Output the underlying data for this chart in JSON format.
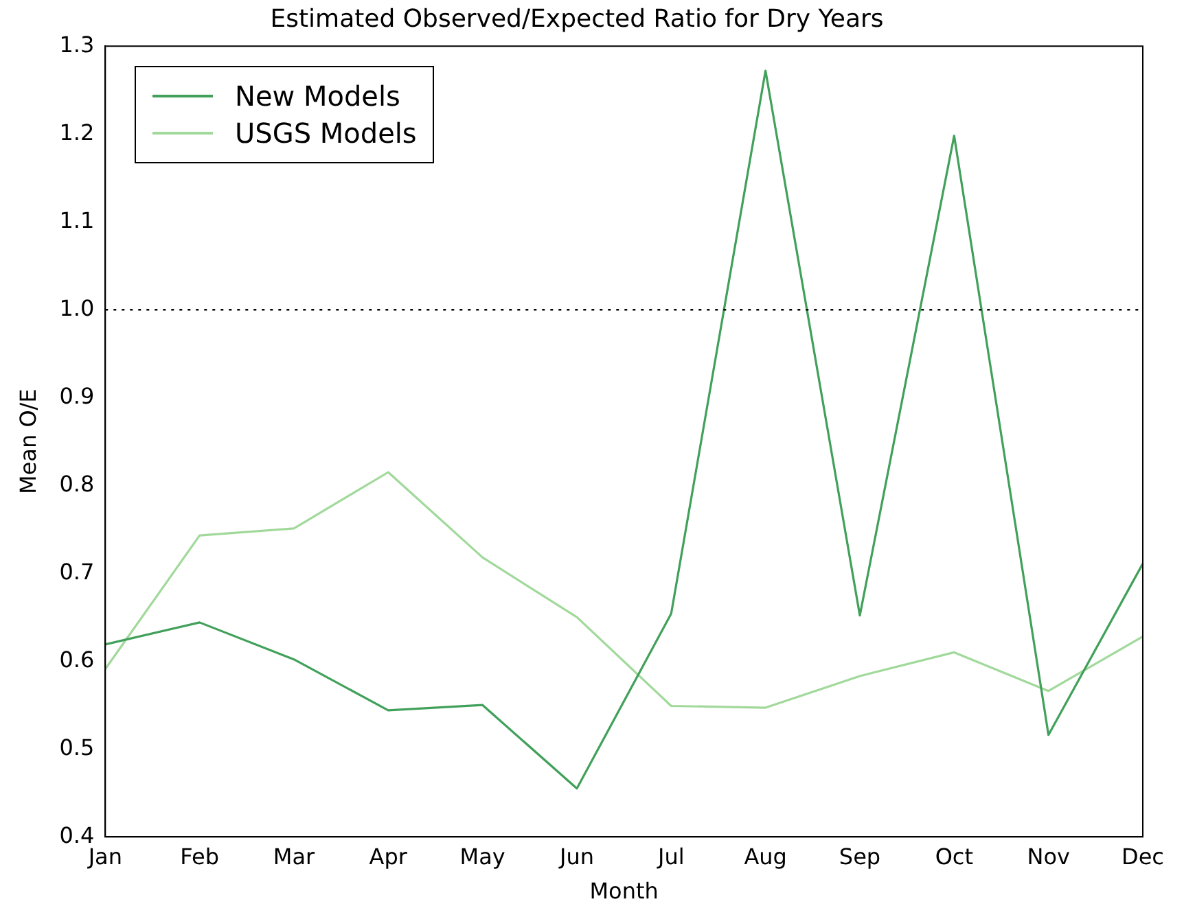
{
  "chart_data": {
    "type": "line",
    "title": "Estimated Observed/Expected Ratio for Dry Years",
    "xlabel": "Month",
    "ylabel": "Mean O/E",
    "categories": [
      "Jan",
      "Feb",
      "Mar",
      "Apr",
      "May",
      "Jun",
      "Jul",
      "Aug",
      "Sep",
      "Oct",
      "Nov",
      "Dec"
    ],
    "series": [
      {
        "name": "New Models",
        "color": "#41a05a",
        "values": [
          0.619,
          0.644,
          0.602,
          0.544,
          0.55,
          0.455,
          0.654,
          1.272,
          0.652,
          1.198,
          0.516,
          0.711
        ]
      },
      {
        "name": "USGS Models",
        "color": "#a1d99b",
        "values": [
          0.591,
          0.743,
          0.751,
          0.815,
          0.718,
          0.65,
          0.549,
          0.547,
          0.583,
          0.61,
          0.566,
          0.628
        ]
      }
    ],
    "ylim": [
      0.4,
      1.3
    ],
    "yticks": [
      {
        "value": 0.4,
        "label": "0.4"
      },
      {
        "value": 0.5,
        "label": "0.5"
      },
      {
        "value": 0.6,
        "label": "0.6"
      },
      {
        "value": 0.7,
        "label": "0.7"
      },
      {
        "value": 0.8,
        "label": "0.8"
      },
      {
        "value": 0.9,
        "label": "0.9"
      },
      {
        "value": 1.0,
        "label": "1.0"
      },
      {
        "value": 1.1,
        "label": "1.1"
      },
      {
        "value": 1.2,
        "label": "1.2"
      },
      {
        "value": 1.3,
        "label": "1.3"
      }
    ],
    "ref_lines": [
      {
        "axis": "y",
        "value": 1.0,
        "color": "#000000",
        "line_style": "dotted"
      }
    ],
    "grid": false,
    "legend": "top left",
    "marker": "none",
    "line_style": "solid"
  }
}
